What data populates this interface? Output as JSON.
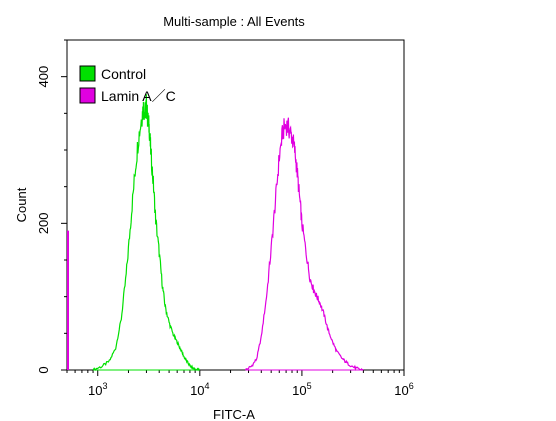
{
  "chart_data": {
    "type": "line",
    "title": "Multi-sample : All Events",
    "xlabel": "FITC-A",
    "ylabel": "Count",
    "x_scale": "log",
    "xlim": [
      500,
      1000000
    ],
    "ylim": [
      0,
      450
    ],
    "x_ticks": [
      {
        "value": 1000,
        "base": "10",
        "exp": "3"
      },
      {
        "value": 10000,
        "base": "10",
        "exp": "4"
      },
      {
        "value": 100000,
        "base": "10",
        "exp": "5"
      },
      {
        "value": 1000000,
        "base": "10",
        "exp": "6"
      }
    ],
    "y_ticks": [
      {
        "value": 0,
        "label": "0"
      },
      {
        "value": 200,
        "label": "200"
      },
      {
        "value": 400,
        "label": "400"
      }
    ],
    "grid": false,
    "legend_position": "top-left",
    "series": [
      {
        "name": "Control",
        "color": "#00e000",
        "x": [
          900,
          1100,
          1300,
          1500,
          1700,
          1900,
          2100,
          2300,
          2500,
          2700,
          2800,
          2900,
          3000,
          3100,
          3200,
          3300,
          3500,
          3700,
          4000,
          4300,
          4600,
          5000,
          5500,
          6000,
          6500,
          7000,
          7600,
          8200,
          9000,
          10000
        ],
        "y": [
          0,
          5,
          12,
          30,
          70,
          130,
          200,
          265,
          315,
          345,
          358,
          350,
          362,
          340,
          330,
          300,
          255,
          205,
          160,
          115,
          85,
          65,
          48,
          38,
          28,
          18,
          10,
          4,
          1,
          0
        ]
      },
      {
        "name": "Lamin A／C",
        "color": "#e000e0",
        "x": [
          28000,
          32000,
          36000,
          40000,
          45000,
          50000,
          55000,
          60000,
          65000,
          70000,
          75000,
          80000,
          85000,
          90000,
          95000,
          100000,
          110000,
          120000,
          130000,
          140000,
          150000,
          165000,
          180000,
          200000,
          220000,
          250000,
          280000,
          320000,
          360000,
          400000
        ],
        "y": [
          0,
          5,
          15,
          45,
          100,
          165,
          230,
          290,
          325,
          335,
          328,
          318,
          300,
          270,
          235,
          200,
          160,
          125,
          110,
          100,
          92,
          75,
          55,
          38,
          25,
          15,
          9,
          4,
          1,
          0
        ]
      }
    ]
  }
}
